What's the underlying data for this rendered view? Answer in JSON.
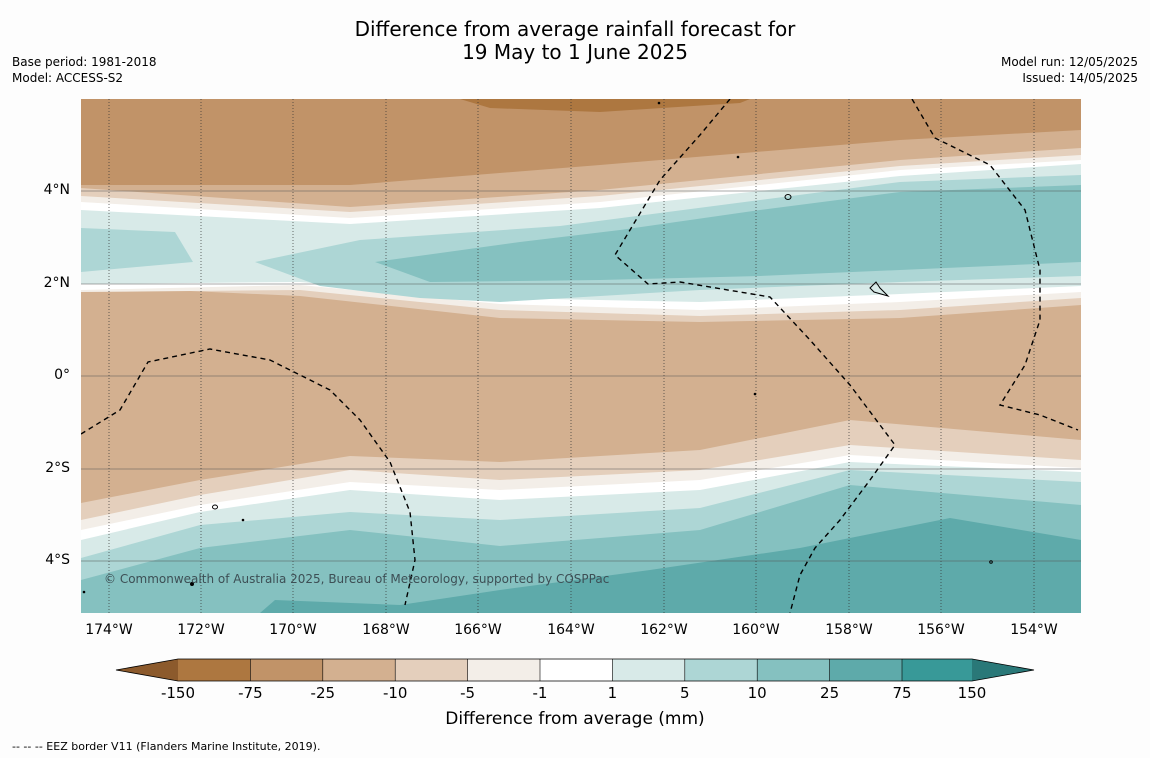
{
  "title_line1": "Difference from average rainfall forecast for",
  "title_line2": "19 May to 1 June 2025",
  "meta_left": {
    "base_period": "Base period: 1981-2018",
    "model": "Model: ACCESS-S2"
  },
  "meta_right": {
    "model_run": "Model run: 12/05/2025",
    "issued": "Issued: 14/05/2025"
  },
  "lat_labels": [
    "4°N",
    "2°N",
    "0°",
    "2°S",
    "4°S"
  ],
  "lon_labels": [
    "174°W",
    "172°W",
    "170°W",
    "168°W",
    "166°W",
    "164°W",
    "162°W",
    "160°W",
    "158°W",
    "156°W",
    "154°W"
  ],
  "copyright": "© Commonwealth of Australia 2025, Bureau of Meteorology, supported by COSPPac",
  "colorbar": {
    "ticks": [
      "-150",
      "-75",
      "-25",
      "-10",
      "-5",
      "-1",
      "1",
      "5",
      "10",
      "25",
      "75",
      "150"
    ],
    "colors": [
      "#8c5a2c",
      "#ad7740",
      "#c19368",
      "#d3b090",
      "#e4cfbc",
      "#f3eee8",
      "#ffffff",
      "#d8eae8",
      "#add6d5",
      "#85c1c0",
      "#5eaaaa",
      "#389998",
      "#2a7878"
    ],
    "title": "Difference from average (mm)"
  },
  "footnote": "-- -- -- EEZ border V11 (Flanders Marine Institute, 2019)."
}
